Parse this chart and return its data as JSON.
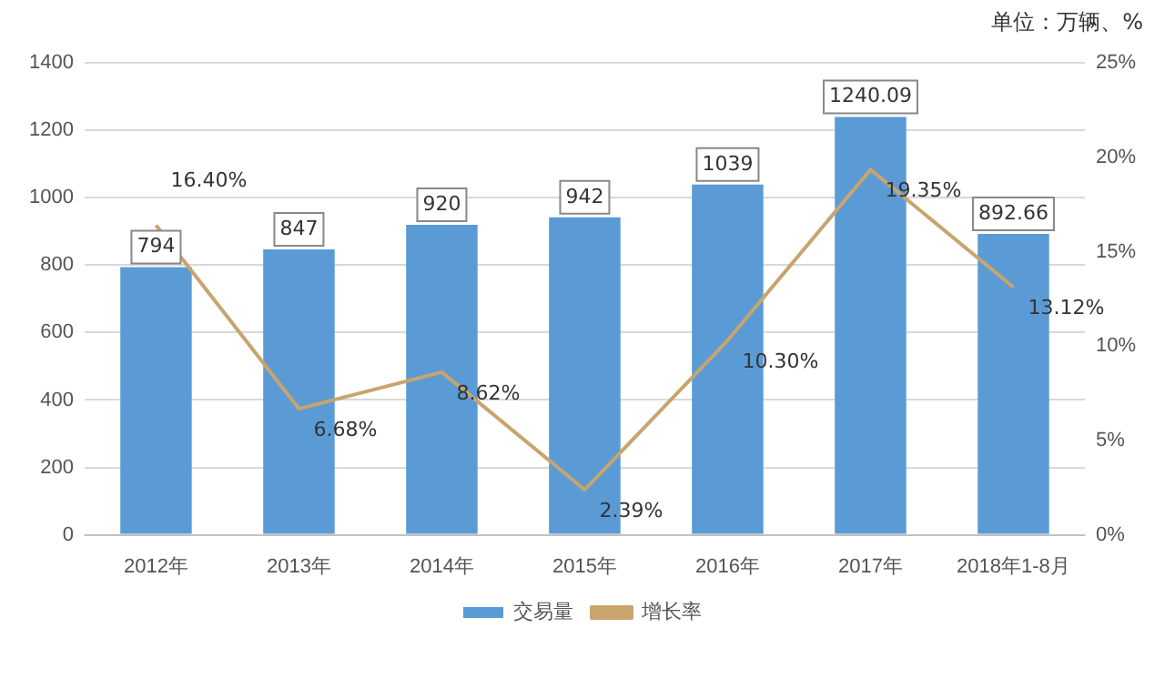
{
  "chart_data": {
    "type": "bar",
    "categories": [
      "2012年",
      "2013年",
      "2014年",
      "2015年",
      "2016年",
      "2017年",
      "2018年1-8月"
    ],
    "series": [
      {
        "name": "交易量",
        "color": "#5b9bd5",
        "values": [
          794,
          847,
          920,
          942,
          1039,
          1240.09,
          892.66
        ],
        "value_labels": [
          "794",
          "847",
          "920",
          "942",
          "1039",
          "1240.09",
          "892.66"
        ]
      },
      {
        "name": "增长率",
        "type": "line",
        "axis": "y2",
        "color": "#c8a46e",
        "values": [
          16.4,
          6.68,
          8.62,
          2.39,
          10.3,
          19.35,
          13.12
        ],
        "value_labels": [
          "16.40%",
          "6.68%",
          "8.62%",
          "2.39%",
          "10.30%",
          "19.35%",
          "13.12%"
        ]
      }
    ],
    "ylim": [
      0,
      1400
    ],
    "yticks": [
      0,
      200,
      400,
      600,
      800,
      1000,
      1200,
      1400
    ],
    "y2lim": [
      0,
      25
    ],
    "y2ticks": [
      {
        "value": 0,
        "label": "0%"
      },
      {
        "value": 5,
        "label": "5%"
      },
      {
        "value": 10,
        "label": "10%"
      },
      {
        "value": 15,
        "label": "15%"
      },
      {
        "value": 20,
        "label": "20%"
      },
      {
        "value": 25,
        "label": "25%"
      }
    ],
    "grid": "y",
    "legend": "bottom",
    "marker": "none",
    "line_style": "solid",
    "annotations": [
      "单位：万辆、%"
    ]
  }
}
